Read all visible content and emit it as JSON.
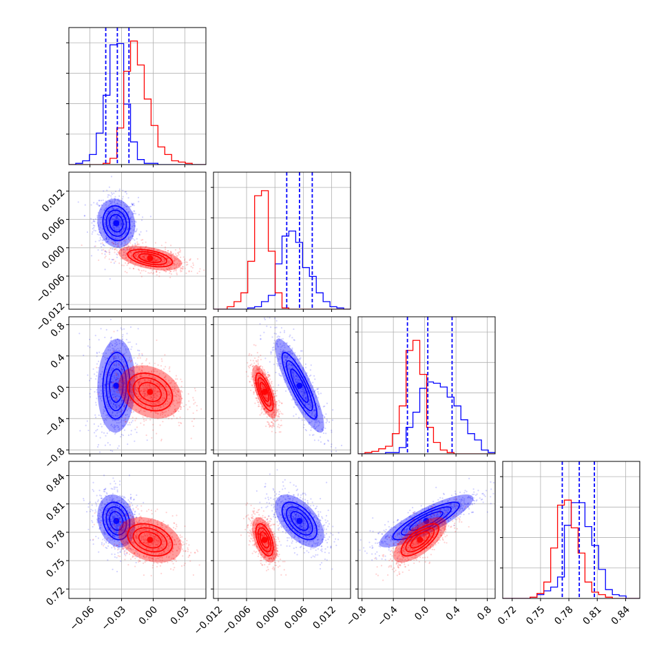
{
  "colors": {
    "blue": "#0000ff",
    "red": "#ff0000"
  },
  "chart_data": {
    "type": "corner",
    "grid": true,
    "parameters": [
      {
        "range": [
          -0.08,
          0.05
        ],
        "ticks": [
          -0.06,
          -0.03,
          0.0,
          0.03
        ],
        "tick_labels": [
          "−0.06",
          "−0.03",
          "0.00",
          "0.03"
        ]
      },
      {
        "range": [
          -0.013,
          0.016
        ],
        "ticks": [
          -0.012,
          -0.006,
          0.0,
          0.006,
          0.012
        ],
        "tick_labels": [
          "−0.012",
          "−0.006",
          "0.000",
          "0.006",
          "0.012"
        ]
      },
      {
        "range": [
          -0.85,
          0.9
        ],
        "ticks": [
          -0.8,
          -0.4,
          0.0,
          0.4,
          0.8
        ],
        "tick_labels": [
          "−0.8",
          "−0.4",
          "0.0",
          "0.4",
          "0.8"
        ]
      },
      {
        "range": [
          0.71,
          0.855
        ],
        "ticks": [
          0.72,
          0.75,
          0.78,
          0.81,
          0.84
        ],
        "tick_labels": [
          "0.72",
          "0.75",
          "0.78",
          "0.81",
          "0.84"
        ]
      }
    ],
    "series": [
      {
        "color": "#0000ff",
        "mean": [
          -0.035,
          0.0052,
          0.02,
          0.792
        ],
        "std": [
          0.009,
          0.0026,
          0.3,
          0.014
        ],
        "quantiles": [
          [
            -0.045,
            -0.034,
            -0.023
          ],
          [
            0.0025,
            0.0052,
            0.0079
          ],
          [
            -0.22,
            0.04,
            0.35
          ],
          [
            0.773,
            0.791,
            0.807
          ]
        ],
        "hist": [
          [
            0.0,
            0.01,
            0.03,
            0.08,
            0.25,
            0.55,
            0.95,
            0.96,
            0.48,
            0.18,
            0.04,
            0.01,
            0.01,
            0.0,
            0.0,
            0.0,
            0.0,
            0.0,
            0.0,
            0.0
          ],
          [
            0.0,
            0.0,
            0.0,
            0.0,
            0.0,
            0.01,
            0.02,
            0.06,
            0.11,
            0.36,
            0.58,
            0.62,
            0.53,
            0.33,
            0.26,
            0.13,
            0.06,
            0.02,
            0.01,
            0.0
          ],
          [
            0.0,
            0.0,
            0.0,
            0.0,
            0.01,
            0.01,
            0.05,
            0.21,
            0.33,
            0.52,
            0.57,
            0.56,
            0.53,
            0.45,
            0.38,
            0.27,
            0.16,
            0.11,
            0.03,
            0.01
          ],
          [
            0.0,
            0.0,
            0.0,
            0.0,
            0.01,
            0.03,
            0.06,
            0.09,
            0.17,
            0.58,
            0.76,
            0.76,
            0.57,
            0.42,
            0.23,
            0.07,
            0.03,
            0.02,
            0.0,
            0.0
          ]
        ]
      },
      {
        "color": "#ff0000",
        "mean": [
          -0.003,
          -0.0022,
          -0.06,
          0.772
        ],
        "std": [
          0.015,
          0.0013,
          0.17,
          0.012
        ],
        "hist": [
          [
            0.0,
            0.0,
            0.0,
            0.0,
            0.0,
            0.01,
            0.05,
            0.29,
            0.74,
            0.98,
            0.79,
            0.52,
            0.31,
            0.14,
            0.08,
            0.03,
            0.02,
            0.01,
            0.0,
            0.0
          ],
          [
            0.0,
            0.0,
            0.02,
            0.06,
            0.13,
            0.38,
            0.9,
            0.94,
            0.46,
            0.13,
            0.01,
            0.0,
            0.0,
            0.0,
            0.0,
            0.0,
            0.0,
            0.0,
            0.0,
            0.0
          ],
          [
            0.0,
            0.01,
            0.02,
            0.04,
            0.06,
            0.16,
            0.38,
            0.82,
            0.9,
            0.63,
            0.21,
            0.09,
            0.03,
            0.01,
            0.0,
            0.0,
            0.0,
            0.0,
            0.0,
            0.0
          ],
          [
            0.0,
            0.0,
            0.0,
            0.0,
            0.01,
            0.04,
            0.13,
            0.4,
            0.74,
            0.78,
            0.56,
            0.36,
            0.13,
            0.05,
            0.03,
            0.01,
            0.0,
            0.0,
            0.0,
            0.0
          ]
        ]
      }
    ],
    "correlations": {
      "0-1": [
        -0.1,
        -0.45
      ],
      "0-2": [
        0.05,
        -0.25
      ],
      "1-2": [
        -0.85,
        -0.7
      ],
      "0-3": [
        -0.2,
        -0.3
      ],
      "1-3": [
        -0.55,
        -0.5
      ],
      "2-3": [
        0.85,
        0.7
      ]
    },
    "contour_levels": [
      0.5,
      1.0,
      1.5,
      2.0
    ]
  }
}
